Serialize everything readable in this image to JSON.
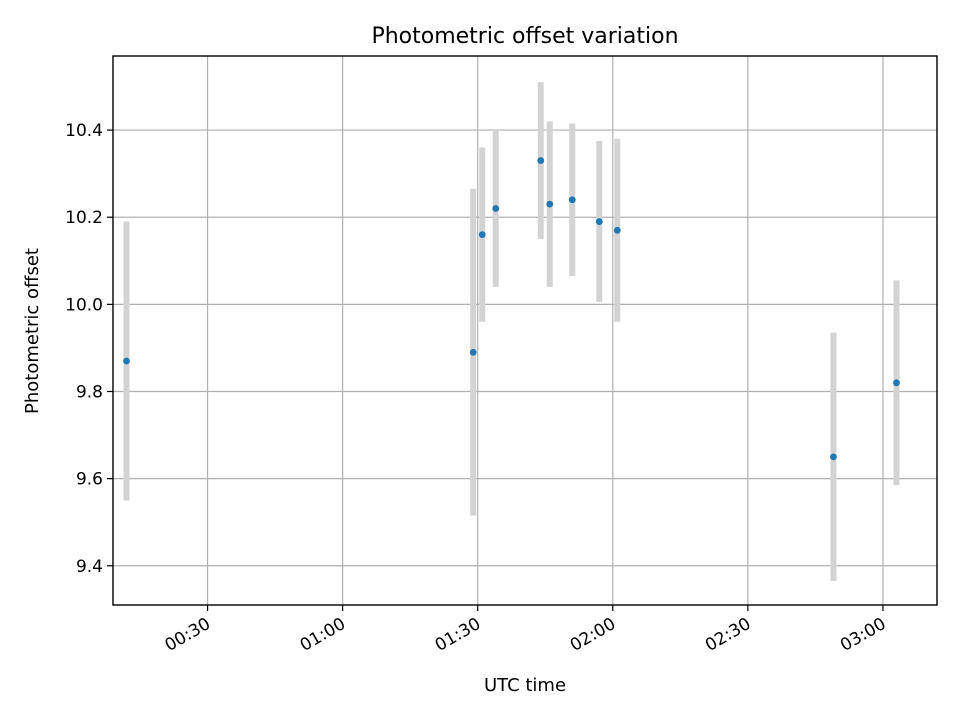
{
  "chart_data": {
    "type": "scatter",
    "title": "Photometric offset variation",
    "xlabel": "UTC time",
    "ylabel": "Photometric offset",
    "x_axis": {
      "type": "time",
      "range": [
        "00:09",
        "03:12"
      ],
      "ticks": [
        "00:30",
        "01:00",
        "01:30",
        "02:00",
        "02:30",
        "03:00"
      ],
      "tick_label_rotation_deg": 30
    },
    "y_axis": {
      "range": [
        9.31,
        10.57
      ],
      "ticks": [
        "9.4",
        "9.6",
        "9.8",
        "10.0",
        "10.2",
        "10.4"
      ]
    },
    "grid": true,
    "marker_color": "#1f77b4",
    "errorbar_color": "#d3d3d3",
    "points": [
      {
        "x": "00:12",
        "y": 9.87,
        "err": 0.32
      },
      {
        "x": "01:29",
        "y": 9.89,
        "err": 0.375
      },
      {
        "x": "01:31",
        "y": 10.16,
        "err": 0.2
      },
      {
        "x": "01:34",
        "y": 10.22,
        "err": 0.18
      },
      {
        "x": "01:44",
        "y": 10.33,
        "err": 0.18
      },
      {
        "x": "01:46",
        "y": 10.23,
        "err": 0.19
      },
      {
        "x": "01:51",
        "y": 10.24,
        "err": 0.175
      },
      {
        "x": "01:57",
        "y": 10.19,
        "err": 0.185
      },
      {
        "x": "02:01",
        "y": 10.17,
        "err": 0.21
      },
      {
        "x": "02:49",
        "y": 9.65,
        "err": 0.285
      },
      {
        "x": "03:03",
        "y": 9.82,
        "err": 0.235
      }
    ]
  }
}
